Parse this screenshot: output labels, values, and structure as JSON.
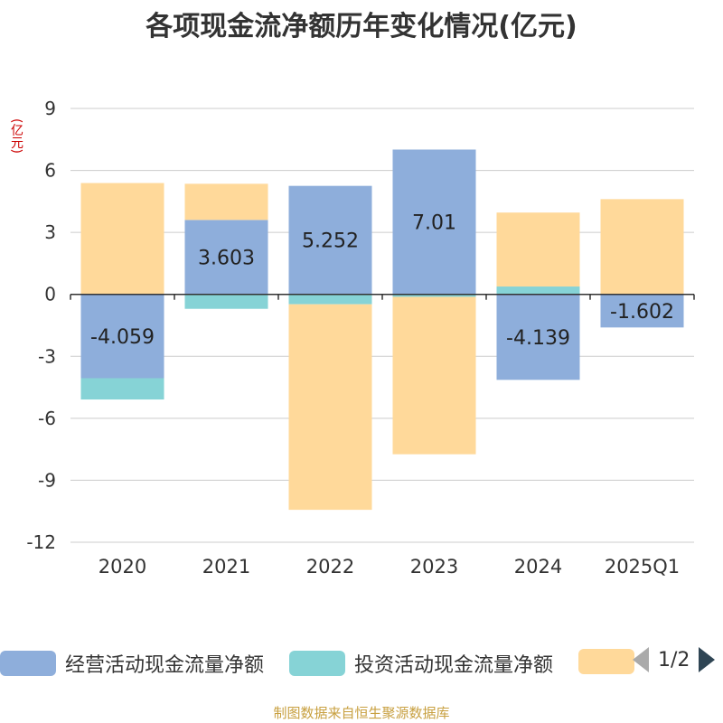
{
  "chart_data": {
    "type": "bar",
    "stacked": true,
    "title": "各项现金流净额历年变化情况(亿元)",
    "unit_label": "(亿元)",
    "categories": [
      "2020",
      "2021",
      "2022",
      "2023",
      "2024",
      "2025Q1"
    ],
    "ylim": [
      -12,
      9
    ],
    "yticks": [
      9,
      6,
      3,
      0,
      -3,
      -6,
      -9,
      -12
    ],
    "grid": true,
    "series": [
      {
        "name": "经营活动现金流量净额",
        "color": "#8eaedb",
        "values": [
          -4.059,
          3.603,
          5.252,
          7.01,
          -4.139,
          -1.602
        ],
        "show_labels": true
      },
      {
        "name": "投资活动现金流量净额",
        "color": "#86d3d6",
        "values": [
          -1.03,
          -0.7,
          -0.48,
          -0.12,
          0.38,
          0.0
        ],
        "show_labels": false
      },
      {
        "name": "",
        "color": "#ffd99a",
        "values": [
          5.39,
          1.75,
          -9.95,
          -7.62,
          3.58,
          4.61
        ],
        "show_labels": false
      }
    ]
  },
  "legend": {
    "items": [
      {
        "label": "经营活动现金流量净额",
        "color": "#8eaedb"
      },
      {
        "label": "投资活动现金流量净额",
        "color": "#86d3d6"
      },
      {
        "label": "",
        "color": "#ffd99a"
      }
    ],
    "page": "1/2"
  },
  "source": "制图数据来自恒生聚源数据库"
}
